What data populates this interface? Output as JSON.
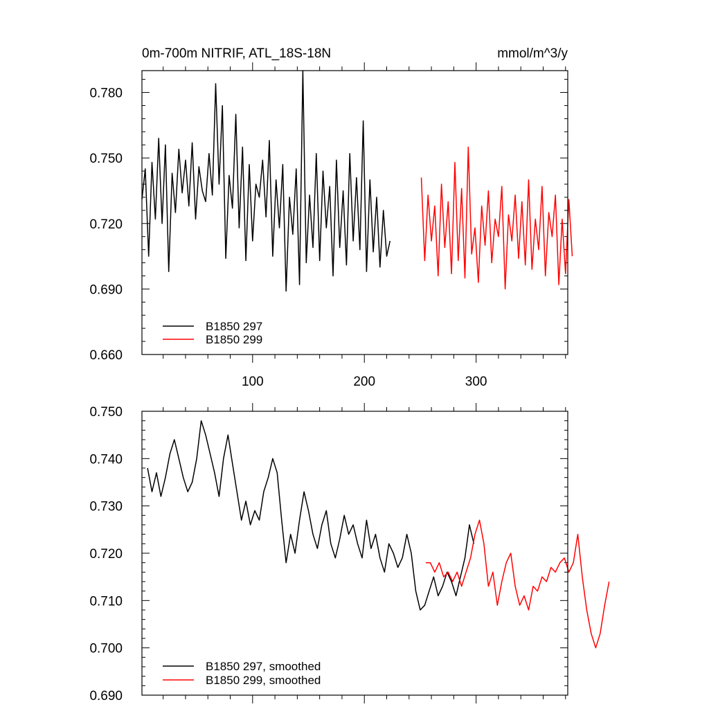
{
  "chart_data": [
    {
      "type": "line",
      "title": "0m-700m NITRIF, ATL_18S-18N",
      "units": "mmol/m^3/y",
      "xlim": [
        1,
        382
      ],
      "ylim": [
        0.66,
        0.79
      ],
      "yticks": [
        0.66,
        0.69,
        0.72,
        0.75,
        0.78
      ],
      "ytick_labels": [
        "0.660",
        "0.690",
        "0.720",
        "0.750",
        "0.780"
      ],
      "xticks": [
        100,
        200,
        300
      ],
      "xtick_labels": [
        "100",
        "200",
        "300"
      ],
      "legend_position": "bottom-left",
      "series": [
        {
          "name": "B1850 297",
          "color": "#000000",
          "x_start": 1,
          "x_step": 3,
          "values": [
            0.731,
            0.745,
            0.705,
            0.748,
            0.722,
            0.759,
            0.72,
            0.756,
            0.698,
            0.743,
            0.725,
            0.754,
            0.734,
            0.749,
            0.728,
            0.757,
            0.722,
            0.746,
            0.735,
            0.73,
            0.752,
            0.733,
            0.784,
            0.738,
            0.774,
            0.704,
            0.742,
            0.727,
            0.77,
            0.718,
            0.755,
            0.703,
            0.747,
            0.712,
            0.738,
            0.732,
            0.749,
            0.723,
            0.758,
            0.705,
            0.74,
            0.718,
            0.747,
            0.689,
            0.732,
            0.715,
            0.745,
            0.692,
            0.79,
            0.702,
            0.733,
            0.709,
            0.752,
            0.703,
            0.744,
            0.718,
            0.737,
            0.696,
            0.749,
            0.709,
            0.735,
            0.701,
            0.752,
            0.712,
            0.741,
            0.708,
            0.767,
            0.698,
            0.74,
            0.707,
            0.732,
            0.7,
            0.726,
            0.705,
            0.712
          ]
        },
        {
          "name": "B1850 299",
          "color": "#ff0000",
          "x_start": 251,
          "x_step": 3,
          "values": [
            0.741,
            0.703,
            0.733,
            0.712,
            0.728,
            0.696,
            0.738,
            0.709,
            0.73,
            0.697,
            0.748,
            0.703,
            0.736,
            0.695,
            0.755,
            0.706,
            0.718,
            0.693,
            0.728,
            0.71,
            0.735,
            0.702,
            0.722,
            0.714,
            0.737,
            0.69,
            0.724,
            0.712,
            0.733,
            0.704,
            0.73,
            0.701,
            0.74,
            0.699,
            0.722,
            0.708,
            0.737,
            0.696,
            0.725,
            0.714,
            0.733,
            0.692,
            0.722,
            0.697,
            0.731,
            0.705
          ]
        }
      ]
    },
    {
      "type": "line",
      "xlim": [
        1,
        382
      ],
      "ylim": [
        0.69,
        0.75
      ],
      "yticks": [
        0.69,
        0.7,
        0.71,
        0.72,
        0.73,
        0.74,
        0.75
      ],
      "ytick_labels": [
        "0.690",
        "0.700",
        "0.710",
        "0.720",
        "0.730",
        "0.740",
        "0.750"
      ],
      "xticks": [
        100,
        200,
        300
      ],
      "legend_position": "bottom-left",
      "series": [
        {
          "name": "B1850 297, smoothed",
          "color": "#000000",
          "x_start": 6,
          "x_step": 4,
          "values": [
            0.738,
            0.733,
            0.737,
            0.732,
            0.736,
            0.741,
            0.744,
            0.74,
            0.736,
            0.733,
            0.735,
            0.74,
            0.748,
            0.745,
            0.741,
            0.737,
            0.732,
            0.74,
            0.745,
            0.739,
            0.733,
            0.727,
            0.731,
            0.726,
            0.729,
            0.727,
            0.733,
            0.736,
            0.74,
            0.737,
            0.727,
            0.718,
            0.724,
            0.72,
            0.727,
            0.733,
            0.729,
            0.724,
            0.721,
            0.726,
            0.729,
            0.722,
            0.719,
            0.723,
            0.728,
            0.724,
            0.726,
            0.722,
            0.719,
            0.727,
            0.721,
            0.724,
            0.719,
            0.716,
            0.722,
            0.72,
            0.717,
            0.719,
            0.724,
            0.72,
            0.712,
            0.708,
            0.709,
            0.712,
            0.715,
            0.711,
            0.713,
            0.716,
            0.714,
            0.711,
            0.715,
            0.719,
            0.726,
            0.722
          ]
        },
        {
          "name": "B1850 299, smoothed",
          "color": "#ff0000",
          "x_start": 255,
          "x_step": 4,
          "values": [
            0.718,
            0.718,
            0.716,
            0.718,
            0.715,
            0.716,
            0.714,
            0.716,
            0.713,
            0.716,
            0.719,
            0.724,
            0.727,
            0.722,
            0.713,
            0.716,
            0.709,
            0.714,
            0.718,
            0.72,
            0.713,
            0.709,
            0.711,
            0.708,
            0.713,
            0.712,
            0.715,
            0.714,
            0.717,
            0.716,
            0.718,
            0.719,
            0.716,
            0.718,
            0.724,
            0.715,
            0.708,
            0.703,
            0.7,
            0.703,
            0.709,
            0.714
          ]
        }
      ]
    }
  ]
}
